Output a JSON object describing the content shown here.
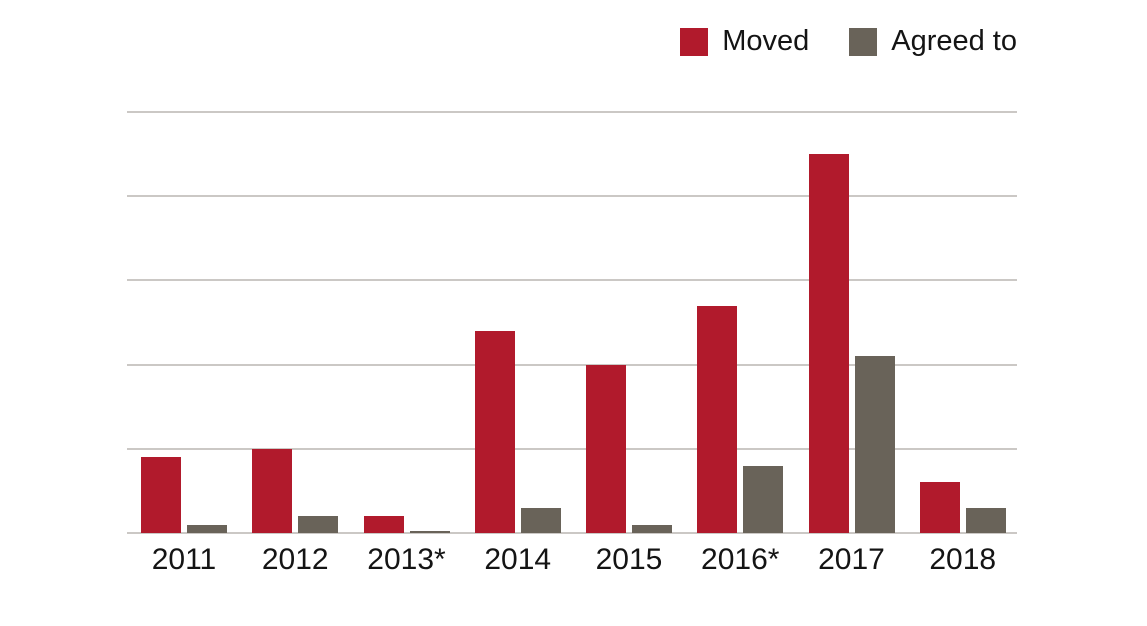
{
  "chart_data": {
    "type": "bar",
    "title": "",
    "xlabel": "",
    "ylabel": "",
    "categories": [
      "2011",
      "2012",
      "2013*",
      "2014",
      "2015",
      "2016*",
      "2017",
      "2018"
    ],
    "series": [
      {
        "name": "Moved",
        "color": "#b11a2c",
        "values": [
          9,
          10,
          2,
          24,
          20,
          27,
          45,
          6
        ]
      },
      {
        "name": "Agreed to",
        "color": "#696359",
        "values": [
          1,
          2,
          0,
          3,
          1,
          8,
          21,
          3
        ]
      }
    ],
    "ylim": [
      0,
      50
    ],
    "y_ticks": [
      0,
      10,
      20,
      30,
      40,
      50
    ],
    "grid": "horizontal",
    "gridline_color": "#cbc8c5",
    "legend_position": "top-right",
    "background_color": "#ffffff",
    "text_color": "#141414"
  }
}
